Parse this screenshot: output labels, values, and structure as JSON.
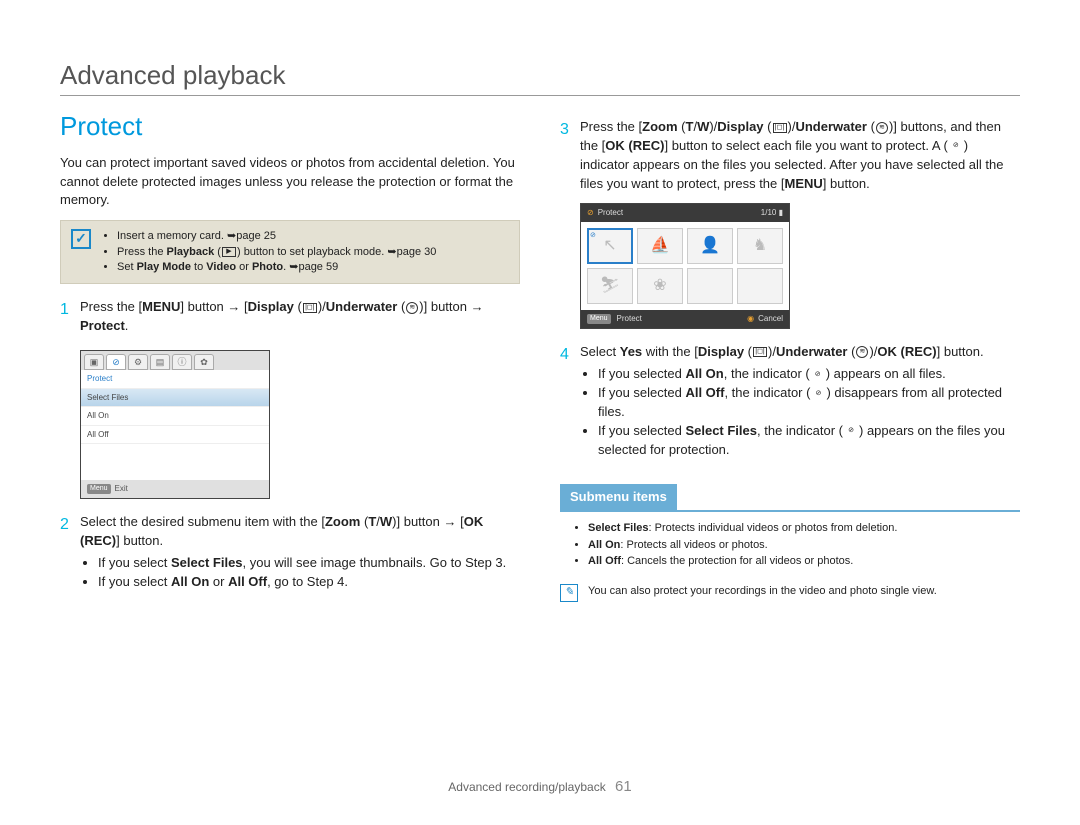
{
  "page_title": "Advanced playback",
  "section_heading": "Protect",
  "intro": "You can protect important saved videos or photos from accidental deletion. You cannot delete protected images unless you release the protection or format the memory.",
  "info_box": {
    "items": [
      "Insert a memory card. ➥page 25",
      "Press the Playback (▣) button to set playback mode. ➥page 30",
      "Set Play Mode to Video or Photo. ➥page 59"
    ]
  },
  "steps_left": [
    {
      "num": "1",
      "text": "Press the [MENU] button → [Display (|◻|)/Underwater (⊕)] button → Protect."
    },
    {
      "num": "2",
      "text": "Select the desired submenu item with the [Zoom (T/W)] button → [OK (REC)] button.",
      "bullets": [
        "If you select Select Files, you will see image thumbnails. Go to Step 3.",
        "If you select All On or All Off, go to Step 4."
      ]
    }
  ],
  "steps_right": [
    {
      "num": "3",
      "text": "Press the [Zoom (T/W)/Display (|◻|)/Underwater (⊕)] buttons, and then the [OK (REC)] button to select each file you want to protect. A (⊘) indicator appears on the files you selected. After you have selected all the files you want to protect, press the [MENU] button."
    },
    {
      "num": "4",
      "text": "Select Yes with the [Display (|◻|)/Underwater (⊕)/OK (REC)] button.",
      "bullets": [
        "If you selected All On, the indicator (⊘) appears on all files.",
        "If you selected All Off, the indicator (⊘) disappears from all protected files.",
        "If you selected Select Files, the indicator (⊘) appears on the files you selected for protection."
      ]
    }
  ],
  "screenshot1": {
    "tabs_glyphs": [
      "▣",
      "⊘",
      "⚙",
      "▤",
      "ⓘ",
      "✿"
    ],
    "items": [
      "Protect",
      "Select Files",
      "All On",
      "All Off"
    ],
    "footer_tag": "Menu",
    "footer": "Exit"
  },
  "screenshot2": {
    "title": "Protect",
    "counter": "1/10",
    "footer_left_tag": "Menu",
    "footer_left": "Protect",
    "footer_right": "Cancel",
    "thumb_glyphs": [
      "↖",
      "⛵",
      "👤",
      "♞",
      "⛷",
      "❀",
      "",
      ""
    ]
  },
  "submenu": {
    "header": "Submenu items",
    "items": [
      {
        "label": "Select Files",
        "desc": ": Protects individual videos or photos from deletion."
      },
      {
        "label": "All On",
        "desc": ": Protects all videos or photos."
      },
      {
        "label": "All Off",
        "desc": ": Cancels the protection for all videos or photos."
      }
    ]
  },
  "tip": "You can also protect your recordings in the video and photo single view.",
  "footer_section": "Advanced recording/playback",
  "footer_page": "61"
}
